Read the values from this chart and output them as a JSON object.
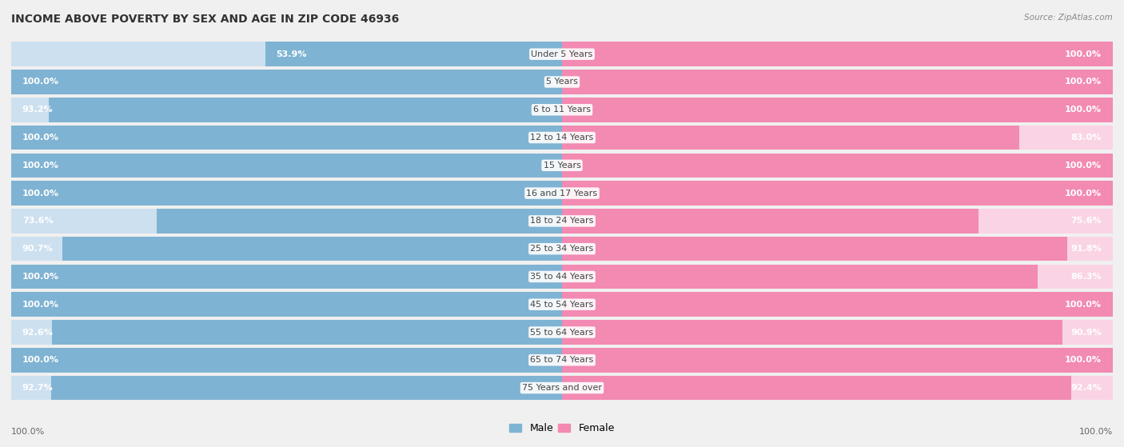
{
  "title": "INCOME ABOVE POVERTY BY SEX AND AGE IN ZIP CODE 46936",
  "source": "Source: ZipAtlas.com",
  "categories": [
    "Under 5 Years",
    "5 Years",
    "6 to 11 Years",
    "12 to 14 Years",
    "15 Years",
    "16 and 17 Years",
    "18 to 24 Years",
    "25 to 34 Years",
    "35 to 44 Years",
    "45 to 54 Years",
    "55 to 64 Years",
    "65 to 74 Years",
    "75 Years and over"
  ],
  "male_values": [
    53.9,
    100.0,
    93.2,
    100.0,
    100.0,
    100.0,
    73.6,
    90.7,
    100.0,
    100.0,
    92.6,
    100.0,
    92.7
  ],
  "female_values": [
    100.0,
    100.0,
    100.0,
    83.0,
    100.0,
    100.0,
    75.6,
    91.8,
    86.3,
    100.0,
    90.9,
    100.0,
    92.4
  ],
  "male_color": "#7fb3d3",
  "female_color": "#f28ab2",
  "male_label_color": "#ffffff",
  "female_label_color": "#ffffff",
  "background_color": "#f0f0f0",
  "bar_bg_odd": "#e8e8e8",
  "bar_bg_even": "#fafafa",
  "bar_background_male": "#cde0f0",
  "bar_background_female": "#fad4e4",
  "title_fontsize": 10,
  "label_fontsize": 8,
  "category_fontsize": 8,
  "footer_male_value": "100.0%",
  "footer_female_value": "100.0%"
}
